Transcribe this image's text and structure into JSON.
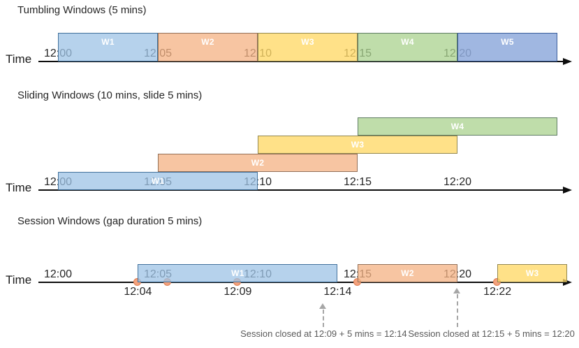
{
  "diagram": {
    "axis_label": "Time",
    "ticks": [
      {
        "text": "12:00",
        "min": 0
      },
      {
        "text": "12:05",
        "min": 5
      },
      {
        "text": "12:10",
        "min": 10
      },
      {
        "text": "12:15",
        "min": 15
      },
      {
        "text": "12:20",
        "min": 20
      }
    ],
    "colors": {
      "lightblue": {
        "fill": "rgba(157,195,230,0.75)",
        "border": "#41719C"
      },
      "orange": {
        "fill": "rgba(244,177,131,0.75)",
        "border": "#937058"
      },
      "yellow": {
        "fill": "rgba(255,217,102,0.78)",
        "border": "#93884F"
      },
      "green": {
        "fill": "rgba(169,209,142,0.75)",
        "border": "#5F7D64"
      },
      "blue": {
        "fill": "rgba(143,170,220,0.85)",
        "border": "#3A5E9C"
      }
    },
    "event_dot_color": {
      "fill": "#F3A17C",
      "border": "#DF8055"
    },
    "sections": [
      {
        "key": "tumbling",
        "title": "Tumbling Windows (5 mins)",
        "windows": [
          {
            "label": "W1",
            "start": "12:00",
            "end": "12:05",
            "start_min": 0,
            "end_min": 5,
            "color": "lightblue",
            "row": 0
          },
          {
            "label": "W2",
            "start": "12:05",
            "end": "12:10",
            "start_min": 5,
            "end_min": 10,
            "color": "orange",
            "row": 0
          },
          {
            "label": "W3",
            "start": "12:10",
            "end": "12:15",
            "start_min": 10,
            "end_min": 15,
            "color": "yellow",
            "row": 0
          },
          {
            "label": "W4",
            "start": "12:15",
            "end": "12:20",
            "start_min": 15,
            "end_min": 20,
            "color": "green",
            "row": 0
          },
          {
            "label": "W5",
            "start": "12:20",
            "end": "12:25",
            "start_min": 20,
            "end_min": 25,
            "color": "blue",
            "row": 0
          }
        ]
      },
      {
        "key": "sliding",
        "title": "Sliding Windows (10 mins, slide 5 mins)",
        "windows": [
          {
            "label": "W1",
            "start": "12:00",
            "end": "12:10",
            "start_min": 0,
            "end_min": 10,
            "color": "lightblue",
            "row": 0
          },
          {
            "label": "W2",
            "start": "12:05",
            "end": "12:15",
            "start_min": 5,
            "end_min": 15,
            "color": "orange",
            "row": 1
          },
          {
            "label": "W3",
            "start": "12:10",
            "end": "12:20",
            "start_min": 10,
            "end_min": 20,
            "color": "yellow",
            "row": 2
          },
          {
            "label": "W4",
            "start": "12:15",
            "end": "12:25",
            "start_min": 15,
            "end_min": 25,
            "color": "green",
            "row": 3
          }
        ]
      },
      {
        "key": "session",
        "title": "Session Windows (gap duration 5 mins)",
        "windows": [
          {
            "label": "W1",
            "start": "12:04",
            "end": "12:14",
            "start_min": 4,
            "end_min": 14,
            "color": "lightblue",
            "row": 0
          },
          {
            "label": "W2",
            "start": "12:15",
            "end": "12:20",
            "start_min": 15,
            "end_min": 20,
            "color": "orange",
            "row": 0
          },
          {
            "label": "W3",
            "start": "12:22",
            "end": "",
            "start_min": 22,
            "end_min": 25.5,
            "color": "yellow",
            "row": 0
          }
        ],
        "events": [
          {
            "time": "12:04",
            "min": 4
          },
          {
            "time": "12:05",
            "min": 5.5
          },
          {
            "time": "12:09",
            "min": 9
          },
          {
            "time": "12:15",
            "min": 15
          },
          {
            "time": "12:22",
            "min": 22
          }
        ],
        "event_labels": [
          {
            "text": "12:04",
            "min": 4
          },
          {
            "text": "12:09",
            "min": 9
          },
          {
            "text": "12:14",
            "min": 14
          },
          {
            "text": "12:22",
            "min": 22
          }
        ],
        "annotations": [
          {
            "text": "Session closed at 12:09 + 5 mins = 12:14",
            "arrow_min": 13.3,
            "text_center_min": 13.3
          },
          {
            "text": "Session closed at 12:15 + 5 mins = 12:20",
            "arrow_min": 20,
            "text_center_min": 21.7
          }
        ]
      }
    ]
  }
}
